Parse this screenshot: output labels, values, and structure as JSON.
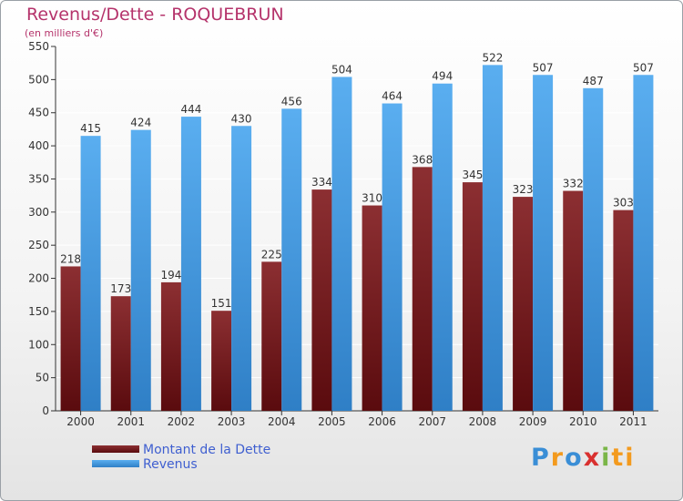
{
  "header": {
    "title": "Revenus/Dette - ROQUEBRUN",
    "subtitle": "(en milliers d'€)"
  },
  "colors": {
    "title": "#b5336b",
    "dette_top": "#8c2f32",
    "dette_bottom": "#5a0b0e",
    "revenus_top": "#5aaef0",
    "revenus_bottom": "#2f7fc6",
    "axis": "#333333",
    "grid": "#ffffff",
    "legend_text": "#3f5fd0"
  },
  "logo": {
    "text": "Proxiti"
  },
  "chart_data": {
    "type": "bar",
    "title": "Revenus/Dette - ROQUEBRUN",
    "subtitle": "(en milliers d'€)",
    "categories": [
      "2000",
      "2001",
      "2002",
      "2003",
      "2004",
      "2005",
      "2006",
      "2007",
      "2008",
      "2009",
      "2010",
      "2011"
    ],
    "series": [
      {
        "name": "Montant de la Dette",
        "values": [
          218,
          173,
          194,
          151,
          225,
          334,
          310,
          368,
          345,
          323,
          332,
          303
        ]
      },
      {
        "name": "Revenus",
        "values": [
          415,
          424,
          444,
          430,
          456,
          504,
          464,
          494,
          522,
          507,
          487,
          507
        ]
      }
    ],
    "ylim": [
      0,
      550
    ],
    "yticks": [
      0,
      50,
      100,
      150,
      200,
      250,
      300,
      350,
      400,
      450,
      500,
      550
    ],
    "grid": true,
    "legend": "bottom-left"
  }
}
